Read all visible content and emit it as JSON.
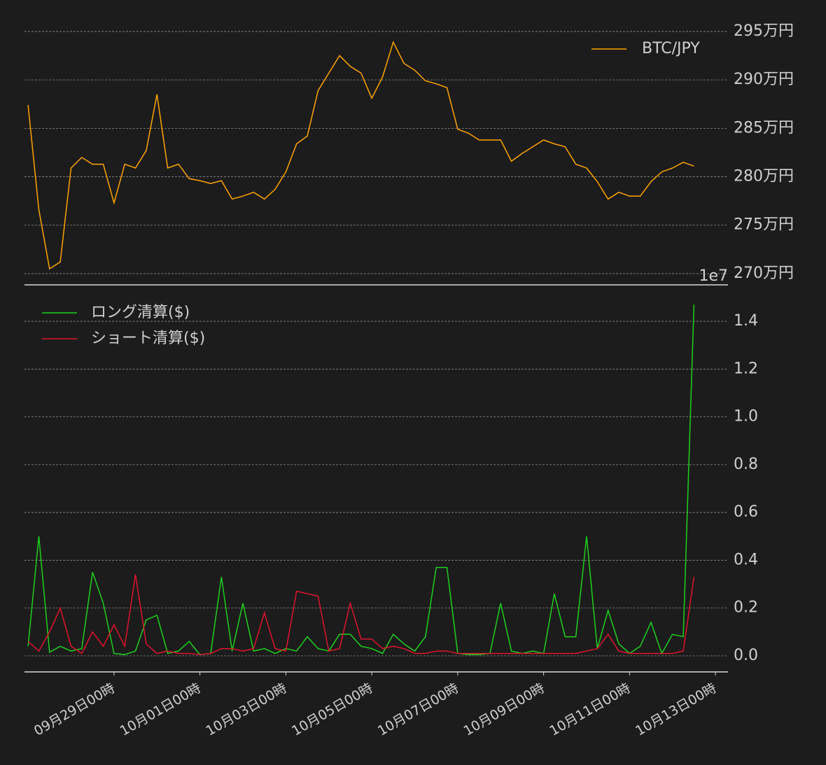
{
  "chart_data": [
    {
      "type": "line",
      "x": [
        "09-27 00:00",
        "09-27 06:00",
        "09-27 12:00",
        "09-27 18:00",
        "09-28 00:00",
        "09-28 06:00",
        "09-28 12:00",
        "09-28 18:00",
        "09-29 00:00",
        "09-29 06:00",
        "09-29 12:00",
        "09-29 18:00",
        "09-30 00:00",
        "09-30 06:00",
        "09-30 12:00",
        "09-30 18:00",
        "10-01 00:00",
        "10-01 06:00",
        "10-01 12:00",
        "10-01 18:00",
        "10-02 00:00",
        "10-02 06:00",
        "10-02 12:00",
        "10-02 18:00",
        "10-03 00:00",
        "10-03 06:00",
        "10-03 12:00",
        "10-03 18:00",
        "10-04 00:00",
        "10-04 06:00",
        "10-04 12:00",
        "10-04 18:00",
        "10-05 00:00",
        "10-05 06:00",
        "10-05 12:00",
        "10-05 18:00",
        "10-06 00:00",
        "10-06 06:00",
        "10-06 12:00",
        "10-06 18:00",
        "10-07 00:00",
        "10-07 06:00",
        "10-07 12:00",
        "10-07 18:00",
        "10-08 00:00",
        "10-08 06:00",
        "10-08 12:00",
        "10-08 18:00",
        "10-09 00:00",
        "10-09 06:00",
        "10-09 12:00",
        "10-09 18:00",
        "10-10 00:00",
        "10-10 06:00",
        "10-10 12:00",
        "10-10 18:00",
        "10-11 00:00",
        "10-11 06:00",
        "10-11 12:00",
        "10-11 18:00",
        "10-12 00:00",
        "10-12 06:00",
        "10-12 12:00"
      ],
      "series": [
        {
          "name": "BTC/JPY",
          "color": "#ffa500",
          "values": [
            2874000,
            2766000,
            2705000,
            2712000,
            2809000,
            2820000,
            2813000,
            2813000,
            2773000,
            2813000,
            2809000,
            2827000,
            2885000,
            2809000,
            2813000,
            2798000,
            2796000,
            2793000,
            2796000,
            2777000,
            2780000,
            2784000,
            2777000,
            2787000,
            2805000,
            2834000,
            2842000,
            2889000,
            2907000,
            2925000,
            2914000,
            2907000,
            2881000,
            2903000,
            2939000,
            2917000,
            2910000,
            2899000,
            2896000,
            2892000,
            2849000,
            2845000,
            2838000,
            2838000,
            2838000,
            2816000,
            2824000,
            2831000,
            2838000,
            2834000,
            2831000,
            2813000,
            2809000,
            2795000,
            2777000,
            2784000,
            2780000,
            2780000,
            2795000,
            2805000,
            2809000,
            2815000,
            2811000
          ]
        }
      ],
      "xlim": [
        "09-26 22:00",
        "10-13 07:00"
      ],
      "ylim": [
        2688400,
        2960800
      ],
      "yticks": [
        {
          "value": 2700000,
          "label": "270万円"
        },
        {
          "value": 2750000,
          "label": "275万円"
        },
        {
          "value": 2800000,
          "label": "280万円"
        },
        {
          "value": 2850000,
          "label": "285万円"
        },
        {
          "value": 2900000,
          "label": "290万円"
        },
        {
          "value": 2950000,
          "label": "295万円"
        }
      ],
      "grid": true,
      "legend": "upper right"
    },
    {
      "type": "line",
      "x": [
        "09-27 00:00",
        "09-27 06:00",
        "09-27 12:00",
        "09-27 18:00",
        "09-28 00:00",
        "09-28 06:00",
        "09-28 12:00",
        "09-28 18:00",
        "09-29 00:00",
        "09-29 06:00",
        "09-29 12:00",
        "09-29 18:00",
        "09-30 00:00",
        "09-30 06:00",
        "09-30 12:00",
        "09-30 18:00",
        "10-01 00:00",
        "10-01 06:00",
        "10-01 12:00",
        "10-01 18:00",
        "10-02 00:00",
        "10-02 06:00",
        "10-02 12:00",
        "10-02 18:00",
        "10-03 00:00",
        "10-03 06:00",
        "10-03 12:00",
        "10-03 18:00",
        "10-04 00:00",
        "10-04 06:00",
        "10-04 12:00",
        "10-04 18:00",
        "10-05 00:00",
        "10-05 06:00",
        "10-05 12:00",
        "10-05 18:00",
        "10-06 00:00",
        "10-06 06:00",
        "10-06 12:00",
        "10-06 18:00",
        "10-07 00:00",
        "10-07 06:00",
        "10-07 12:00",
        "10-07 18:00",
        "10-08 00:00",
        "10-08 06:00",
        "10-08 12:00",
        "10-08 18:00",
        "10-09 00:00",
        "10-09 06:00",
        "10-09 12:00",
        "10-09 18:00",
        "10-10 00:00",
        "10-10 06:00",
        "10-10 12:00",
        "10-10 18:00",
        "10-11 00:00",
        "10-11 06:00",
        "10-11 12:00",
        "10-11 18:00",
        "10-12 00:00",
        "10-12 06:00",
        "10-12 12:00"
      ],
      "series": [
        {
          "name": "ロング清算($)",
          "color": "#1ed21e",
          "values": [
            400000,
            5000000,
            150000,
            400000,
            200000,
            300000,
            3500000,
            2200000,
            100000,
            50000,
            200000,
            1500000,
            1700000,
            100000,
            200000,
            600000,
            50000,
            100000,
            3300000,
            200000,
            2200000,
            200000,
            300000,
            100000,
            300000,
            200000,
            800000,
            300000,
            200000,
            900000,
            900000,
            400000,
            300000,
            100000,
            900000,
            500000,
            200000,
            800000,
            3700000,
            3700000,
            100000,
            50000,
            50000,
            100000,
            2200000,
            200000,
            100000,
            200000,
            100000,
            2600000,
            800000,
            800000,
            5000000,
            300000,
            1900000,
            500000,
            100000,
            400000,
            1400000,
            100000,
            900000,
            800000,
            14700000
          ]
        },
        {
          "name": "ショート清算($)",
          "color": "#e0142d",
          "values": [
            600000,
            200000,
            1000000,
            2000000,
            400000,
            100000,
            1000000,
            400000,
            1300000,
            400000,
            3400000,
            500000,
            100000,
            200000,
            100000,
            100000,
            50000,
            100000,
            300000,
            300000,
            200000,
            300000,
            1800000,
            300000,
            200000,
            2700000,
            2600000,
            2500000,
            200000,
            300000,
            2200000,
            700000,
            700000,
            300000,
            400000,
            300000,
            100000,
            100000,
            200000,
            200000,
            100000,
            100000,
            100000,
            100000,
            100000,
            100000,
            100000,
            100000,
            100000,
            100000,
            100000,
            100000,
            200000,
            300000,
            900000,
            200000,
            100000,
            100000,
            100000,
            100000,
            100000,
            200000,
            3300000
          ]
        }
      ],
      "xlim": [
        "09-26 22:00",
        "10-13 07:00"
      ],
      "xticks": [
        {
          "value": "09-29 00:00",
          "label": "09月29日00時"
        },
        {
          "value": "10-01 00:00",
          "label": "10月01日00時"
        },
        {
          "value": "10-03 00:00",
          "label": "10月03日00時"
        },
        {
          "value": "10-05 00:00",
          "label": "10月05日00時"
        },
        {
          "value": "10-07 00:00",
          "label": "10月07日00時"
        },
        {
          "value": "10-09 00:00",
          "label": "10月09日00時"
        },
        {
          "value": "10-11 00:00",
          "label": "10月11日00時"
        },
        {
          "value": "10-13 00:00",
          "label": "10月13日00時"
        }
      ],
      "ylim": [
        -674000,
        15525000
      ],
      "yticks": [
        {
          "value": 0,
          "label": "0.0"
        },
        {
          "value": 2000000,
          "label": "0.2"
        },
        {
          "value": 4000000,
          "label": "0.4"
        },
        {
          "value": 6000000,
          "label": "0.6"
        },
        {
          "value": 8000000,
          "label": "0.8"
        },
        {
          "value": 10000000,
          "label": "1.0"
        },
        {
          "value": 12000000,
          "label": "1.2"
        },
        {
          "value": 14000000,
          "label": "1.4"
        }
      ],
      "y_offset_label": "1e7",
      "grid": true,
      "legend": "upper left"
    }
  ]
}
